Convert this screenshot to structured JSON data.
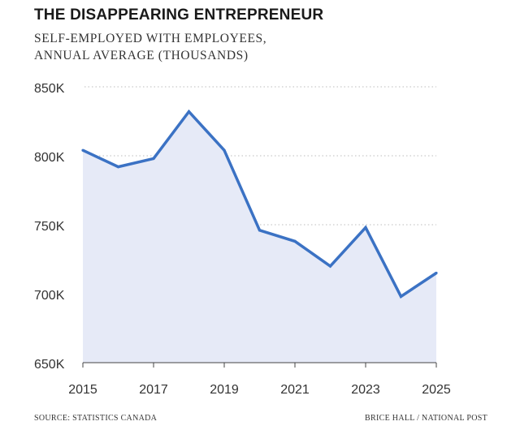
{
  "title": "THE DISAPPEARING ENTREPRENEUR",
  "subtitle_line1": "SELF-EMPLOYED WITH EMPLOYEES,",
  "subtitle_line2": "ANNUAL AVERAGE (THOUSANDS)",
  "source": "SOURCE: STATISTICS CANADA",
  "credit": "BRICE HALL / NATIONAL POST",
  "colors": {
    "line": "#3b72c4",
    "fill": "#e6eaf7",
    "grid": "#bdbdbd",
    "text": "#333333"
  },
  "chart_data": {
    "type": "area",
    "x": [
      2015,
      2016,
      2017,
      2018,
      2019,
      2020,
      2021,
      2022,
      2023,
      2024,
      2025
    ],
    "values": [
      804,
      792,
      798,
      832,
      804,
      746,
      738,
      720,
      748,
      698,
      715
    ],
    "xlim": [
      2015,
      2025
    ],
    "ylim": [
      650,
      850
    ],
    "xticks": [
      "2015",
      "2017",
      "2019",
      "2021",
      "2023",
      "2025"
    ],
    "xtick_values": [
      2015,
      2017,
      2019,
      2021,
      2023,
      2025
    ],
    "yticks": [
      "650K",
      "700K",
      "750K",
      "800K",
      "850K"
    ],
    "ytick_values": [
      650,
      700,
      750,
      800,
      850
    ],
    "grid": "horizontal dotted",
    "legend": "none"
  }
}
